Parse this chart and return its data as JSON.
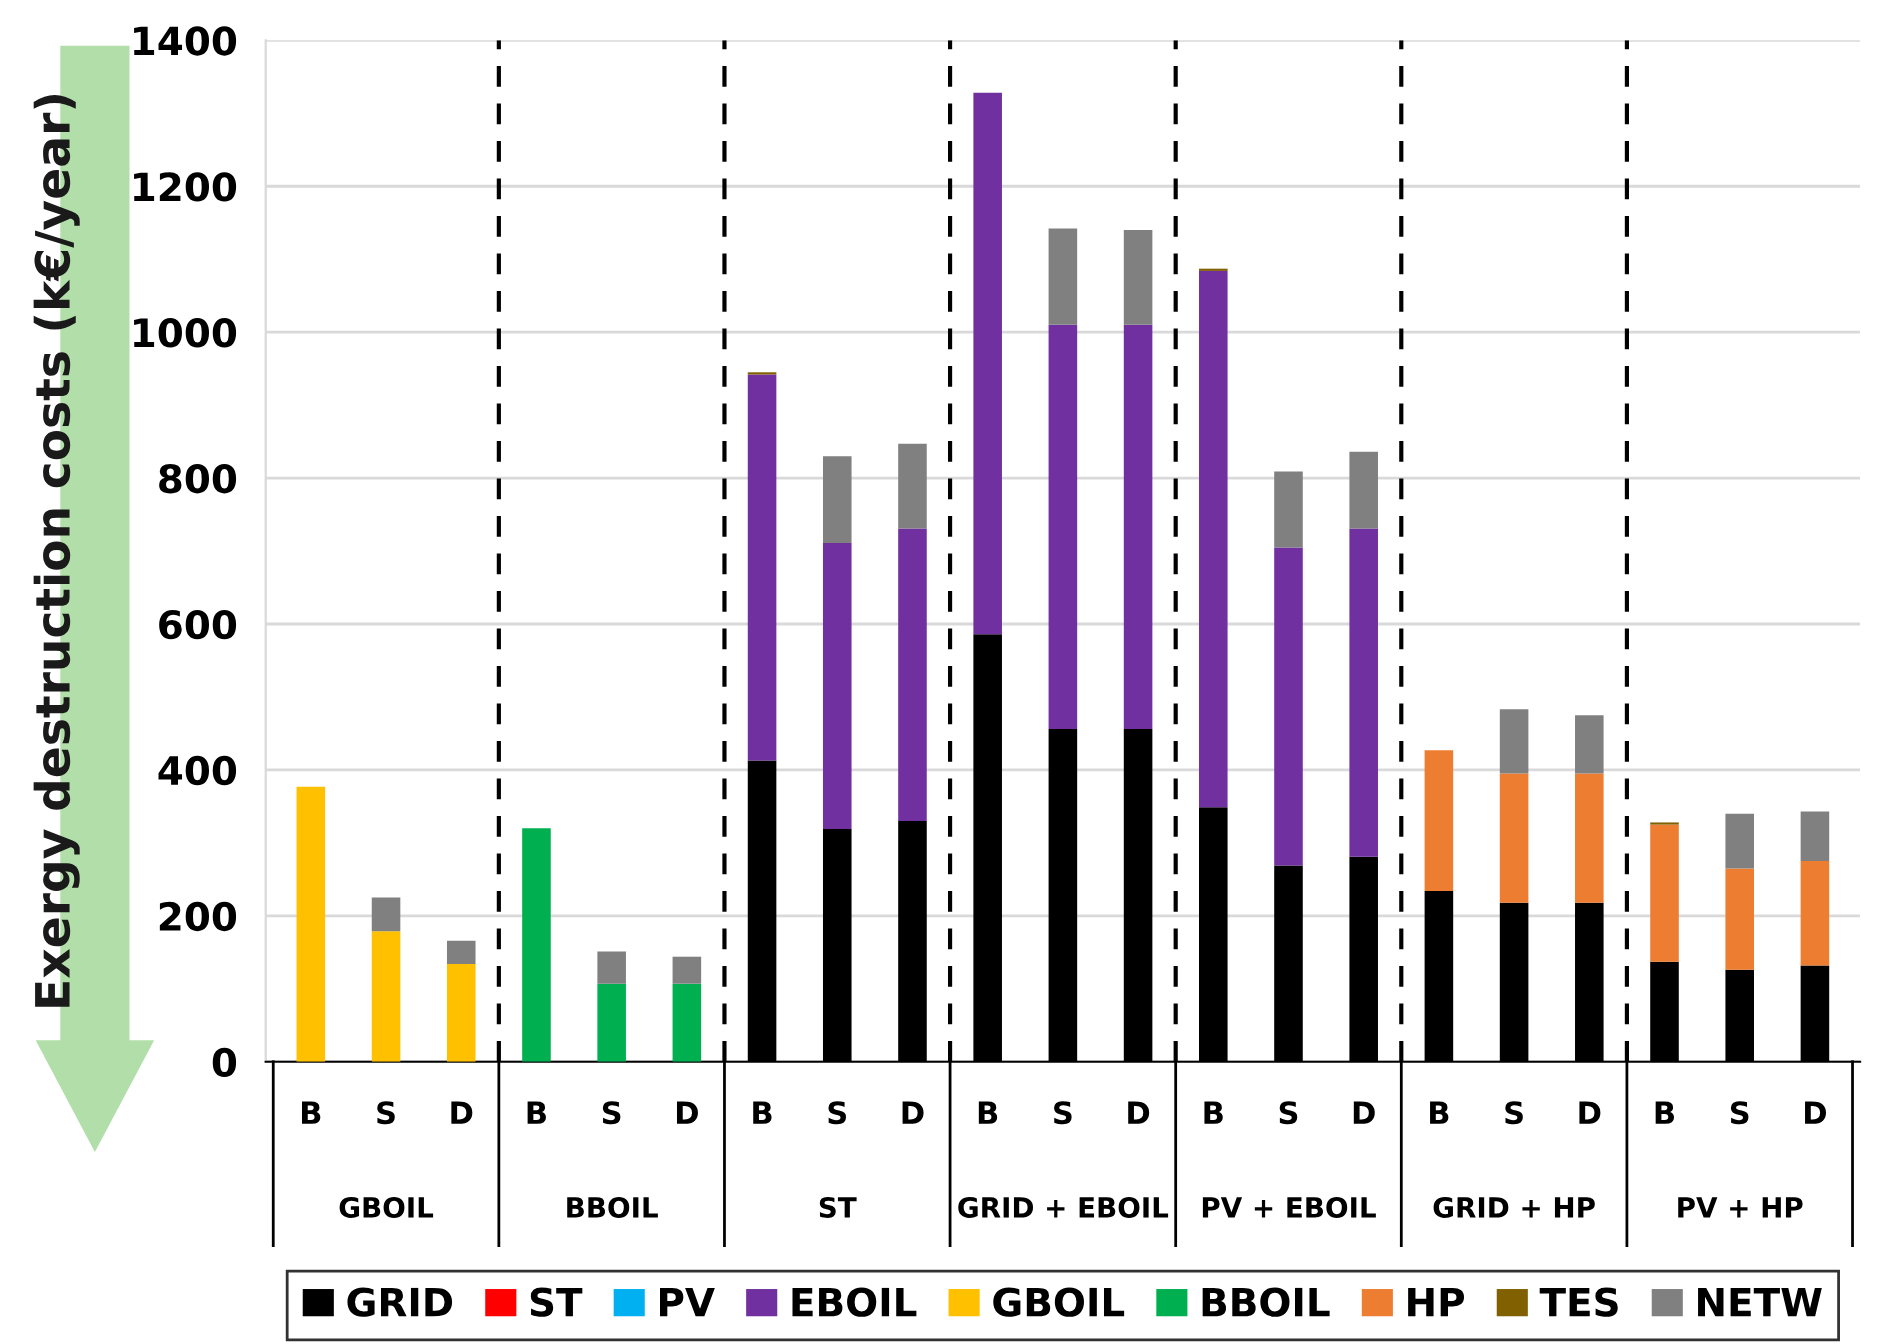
{
  "chart_data": {
    "type": "bar",
    "stacked": true,
    "ylabel": "Exergy destruction costs (k€/year)",
    "categories": [
      "B",
      "S",
      "D",
      "B",
      "S",
      "D",
      "B",
      "S",
      "D",
      "B",
      "S",
      "D",
      "B",
      "S",
      "D",
      "B",
      "S",
      "D",
      "B",
      "S",
      "D"
    ],
    "annotations": [
      "GBOIL",
      "BBOIL",
      "ST",
      "GRID + EBOIL",
      "PV + EBOIL",
      "GRID + HP",
      "PV + HP"
    ],
    "series": [
      {
        "name": "GRID",
        "color": "#000000",
        "values": [
          0,
          0,
          0,
          0,
          0,
          0,
          413,
          319,
          330,
          586,
          456,
          456,
          349,
          269,
          281,
          234,
          218,
          218,
          137,
          126,
          132
        ]
      },
      {
        "name": "ST",
        "color": "#ff0000",
        "values": [
          0,
          0,
          0,
          0,
          0,
          0,
          0,
          0,
          0,
          0,
          0,
          0,
          0,
          0,
          0,
          0,
          0,
          0,
          0,
          0,
          0
        ]
      },
      {
        "name": "PV",
        "color": "#00b0f0",
        "values": [
          0,
          0,
          0,
          0,
          0,
          0,
          0,
          0,
          0,
          0,
          0,
          0,
          0,
          0,
          0,
          0,
          0,
          0,
          0,
          0,
          0
        ]
      },
      {
        "name": "EBOIL",
        "color": "#7030a0",
        "values": [
          0,
          0,
          0,
          0,
          0,
          0,
          529,
          392,
          401,
          742,
          554,
          554,
          735,
          436,
          450,
          0,
          0,
          0,
          0,
          0,
          0
        ]
      },
      {
        "name": "GBOIL",
        "color": "#ffc000",
        "values": [
          377,
          179,
          134,
          0,
          0,
          0,
          0,
          0,
          0,
          0,
          0,
          0,
          0,
          0,
          0,
          0,
          0,
          0,
          0,
          0,
          0
        ]
      },
      {
        "name": "BBOIL",
        "color": "#00b050",
        "values": [
          0,
          0,
          0,
          320,
          107,
          107,
          0,
          0,
          0,
          0,
          0,
          0,
          0,
          0,
          0,
          0,
          0,
          0,
          0,
          0,
          0
        ]
      },
      {
        "name": "HP",
        "color": "#ed7d31",
        "values": [
          0,
          0,
          0,
          0,
          0,
          0,
          0,
          0,
          0,
          0,
          0,
          0,
          0,
          0,
          0,
          193,
          177,
          177,
          188,
          139,
          143
        ]
      },
      {
        "name": "TES",
        "color": "#806000",
        "values": [
          0,
          0,
          0,
          0,
          0,
          0,
          3,
          0,
          0,
          0,
          0,
          0,
          3,
          0,
          0,
          0,
          0,
          0,
          3,
          0,
          0
        ]
      },
      {
        "name": "NETW",
        "color": "#808080",
        "values": [
          0,
          46,
          32,
          0,
          44,
          37,
          0,
          119,
          116,
          0,
          132,
          130,
          0,
          104,
          105,
          0,
          88,
          80,
          0,
          75,
          68
        ]
      }
    ],
    "ylim": [
      0,
      1400
    ],
    "yticks": [
      0,
      200,
      400,
      600,
      800,
      1000,
      1200,
      1400
    ],
    "grid": "y",
    "legend": "bottom"
  }
}
